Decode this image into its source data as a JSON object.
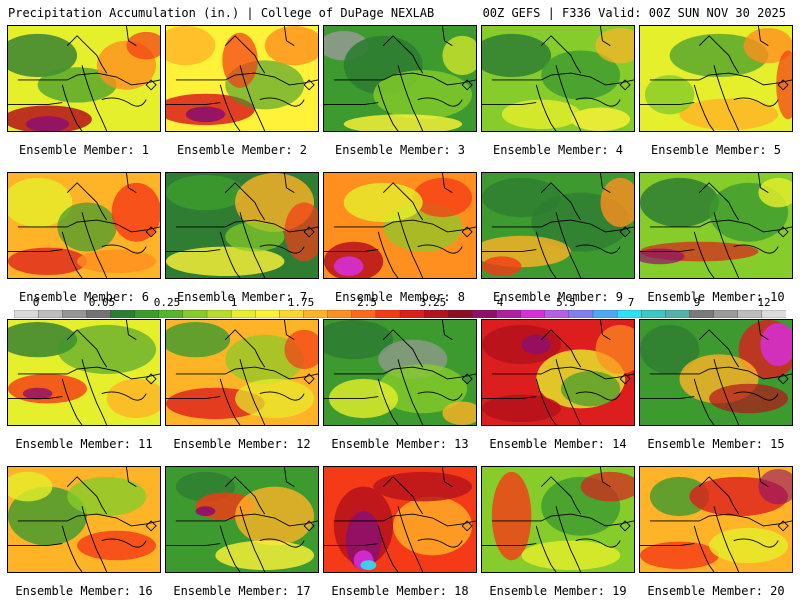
{
  "header": {
    "left": "Precipitation Accumulation (in.) | College of DuPage NEXLAB",
    "right": "00Z GEFS | F336 Valid: 00Z SUN NOV 30 2025"
  },
  "members": [
    {
      "label": "Ensemble Member: 1"
    },
    {
      "label": "Ensemble Member: 2"
    },
    {
      "label": "Ensemble Member: 3"
    },
    {
      "label": "Ensemble Member: 4"
    },
    {
      "label": "Ensemble Member: 5"
    },
    {
      "label": "Ensemble Member: 6"
    },
    {
      "label": "Ensemble Member: 7"
    },
    {
      "label": "Ensemble Member: 8"
    },
    {
      "label": "Ensemble Member: 9"
    },
    {
      "label": "Ensemble Member: 10"
    },
    {
      "label": "Ensemble Member: 11"
    },
    {
      "label": "Ensemble Member: 12"
    },
    {
      "label": "Ensemble Member: 13"
    },
    {
      "label": "Ensemble Member: 14"
    },
    {
      "label": "Ensemble Member: 15"
    },
    {
      "label": "Ensemble Member: 16"
    },
    {
      "label": "Ensemble Member: 17"
    },
    {
      "label": "Ensemble Member: 18"
    },
    {
      "label": "Ensemble Member: 19"
    },
    {
      "label": "Ensemble Member: 20"
    }
  ],
  "colorbar": {
    "labels": [
      "0",
      "0.05",
      "0.25",
      "1",
      "1.75",
      "2.5",
      "3.25",
      "4",
      "5.5",
      "7",
      "9",
      "12"
    ],
    "colors": [
      "#d9d9d9",
      "#bdbdbd",
      "#969696",
      "#737373",
      "#2e7d32",
      "#3c9a2e",
      "#57b42c",
      "#86cc2a",
      "#b7dd2b",
      "#e6ef2c",
      "#fff238",
      "#ffd62f",
      "#ffb327",
      "#ff8f1f",
      "#ff6a1a",
      "#f53a17",
      "#dc1e1e",
      "#b5121b",
      "#8e0c24",
      "#8f0f6a",
      "#b01f9c",
      "#d62fd6",
      "#b45fe8",
      "#7f7ff2",
      "#4fa8f2",
      "#2ee0f0",
      "#3ac9c2",
      "#55b0aa",
      "#7a7a7a",
      "#9a9a9a",
      "#bcbcbc",
      "#dcdcdc"
    ]
  }
}
